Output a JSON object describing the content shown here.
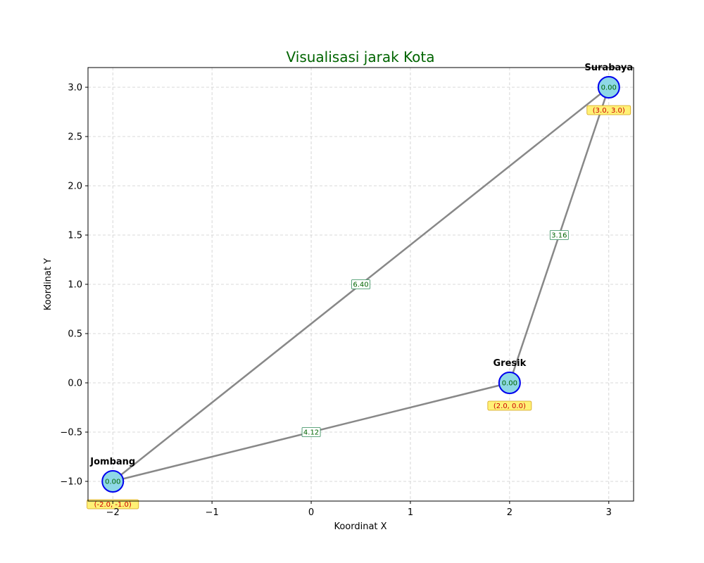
{
  "chart_data": {
    "type": "scatter",
    "title": "Visualisasi jarak Kota",
    "xlabel": "Koordinat X",
    "ylabel": "Koordinat Y",
    "xlim": [
      -2.25,
      3.25
    ],
    "ylim": [
      -1.2,
      3.2
    ],
    "xticks": [
      -2,
      -1,
      0,
      1,
      2,
      3
    ],
    "xtick_labels": [
      "−2",
      "−1",
      "0",
      "1",
      "2",
      "3"
    ],
    "yticks": [
      -1.0,
      -0.5,
      0.0,
      0.5,
      1.0,
      1.5,
      2.0,
      2.5,
      3.0
    ],
    "ytick_labels": [
      "−1.0",
      "−0.5",
      "0.0",
      "0.5",
      "1.0",
      "1.5",
      "2.0",
      "2.5",
      "3.0"
    ],
    "grid": true,
    "nodes": [
      {
        "name": "Surabaya",
        "x": 3.0,
        "y": 3.0,
        "value_label": "0.00",
        "coord_label": "(3.0, 3.0)"
      },
      {
        "name": "Gresik",
        "x": 2.0,
        "y": 0.0,
        "value_label": "0.00",
        "coord_label": "(2.0, 0.0)"
      },
      {
        "name": "Jombang",
        "x": -2.0,
        "y": -1.0,
        "value_label": "0.00",
        "coord_label": "(-2.0, -1.0)"
      }
    ],
    "edges": [
      {
        "from": "Jombang",
        "to": "Surabaya",
        "distance": 6.4,
        "label": "6.40"
      },
      {
        "from": "Jombang",
        "to": "Gresik",
        "distance": 4.12,
        "label": "4.12"
      },
      {
        "from": "Gresik",
        "to": "Surabaya",
        "distance": 3.16,
        "label": "3.16"
      }
    ]
  },
  "colors": {
    "title": "#006400",
    "edge": "#888888",
    "node_fill": "#8ed8e6",
    "node_stroke": "#0000ee",
    "coord_box_fill": "#fff176",
    "coord_box_stroke": "#d4a017",
    "coord_text": "#cc0000",
    "edge_label_text": "#006400",
    "edge_label_box_stroke": "#2e8b57",
    "grid": "#cccccc"
  }
}
